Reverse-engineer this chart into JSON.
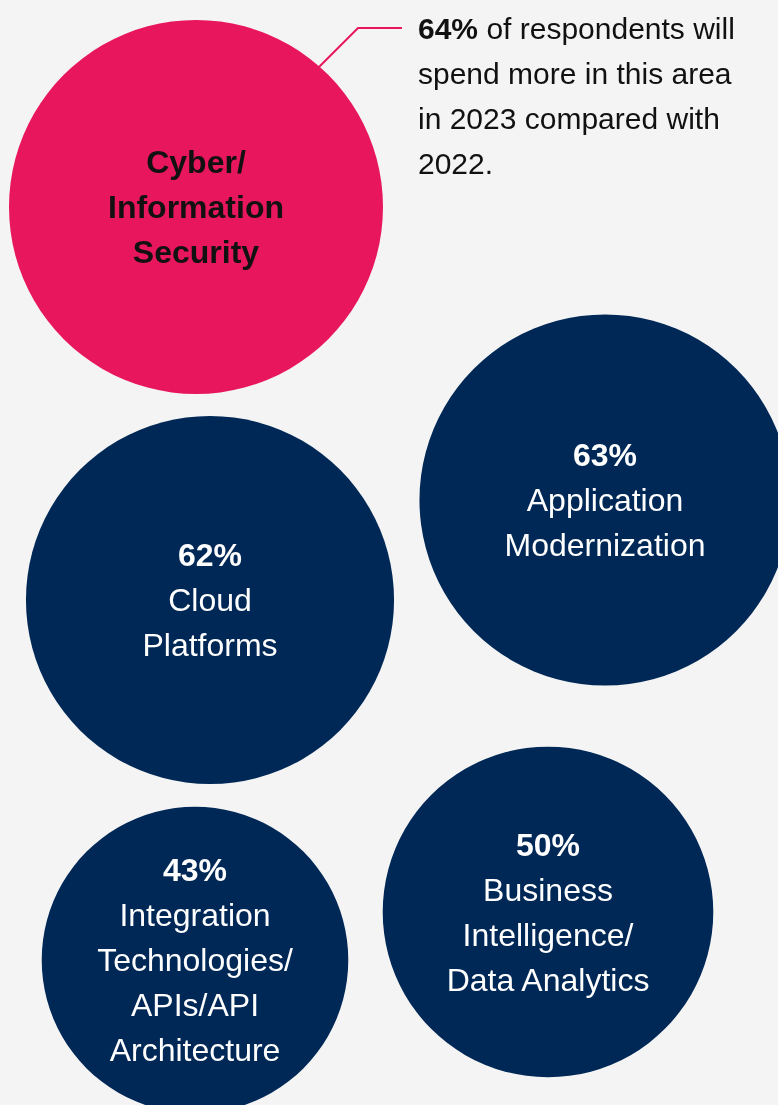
{
  "chart_data": {
    "type": "other",
    "categories": [
      "Cyber/ Information Security",
      "Application Modernization",
      "Cloud Platforms",
      "Business Intelligence/ Data Analytics",
      "Integration Technologies/ APIs/API Architecture"
    ],
    "values": [
      64,
      63,
      62,
      50,
      43
    ],
    "value_labels": [
      "64%",
      "63%",
      "62%",
      "50%",
      "43%"
    ],
    "colors": [
      "#e8175d",
      "#002856",
      "#002856",
      "#002856",
      "#002856"
    ],
    "annotations": [
      "of respondents will spend more in this area in 2023 compared with 2022."
    ]
  }
}
